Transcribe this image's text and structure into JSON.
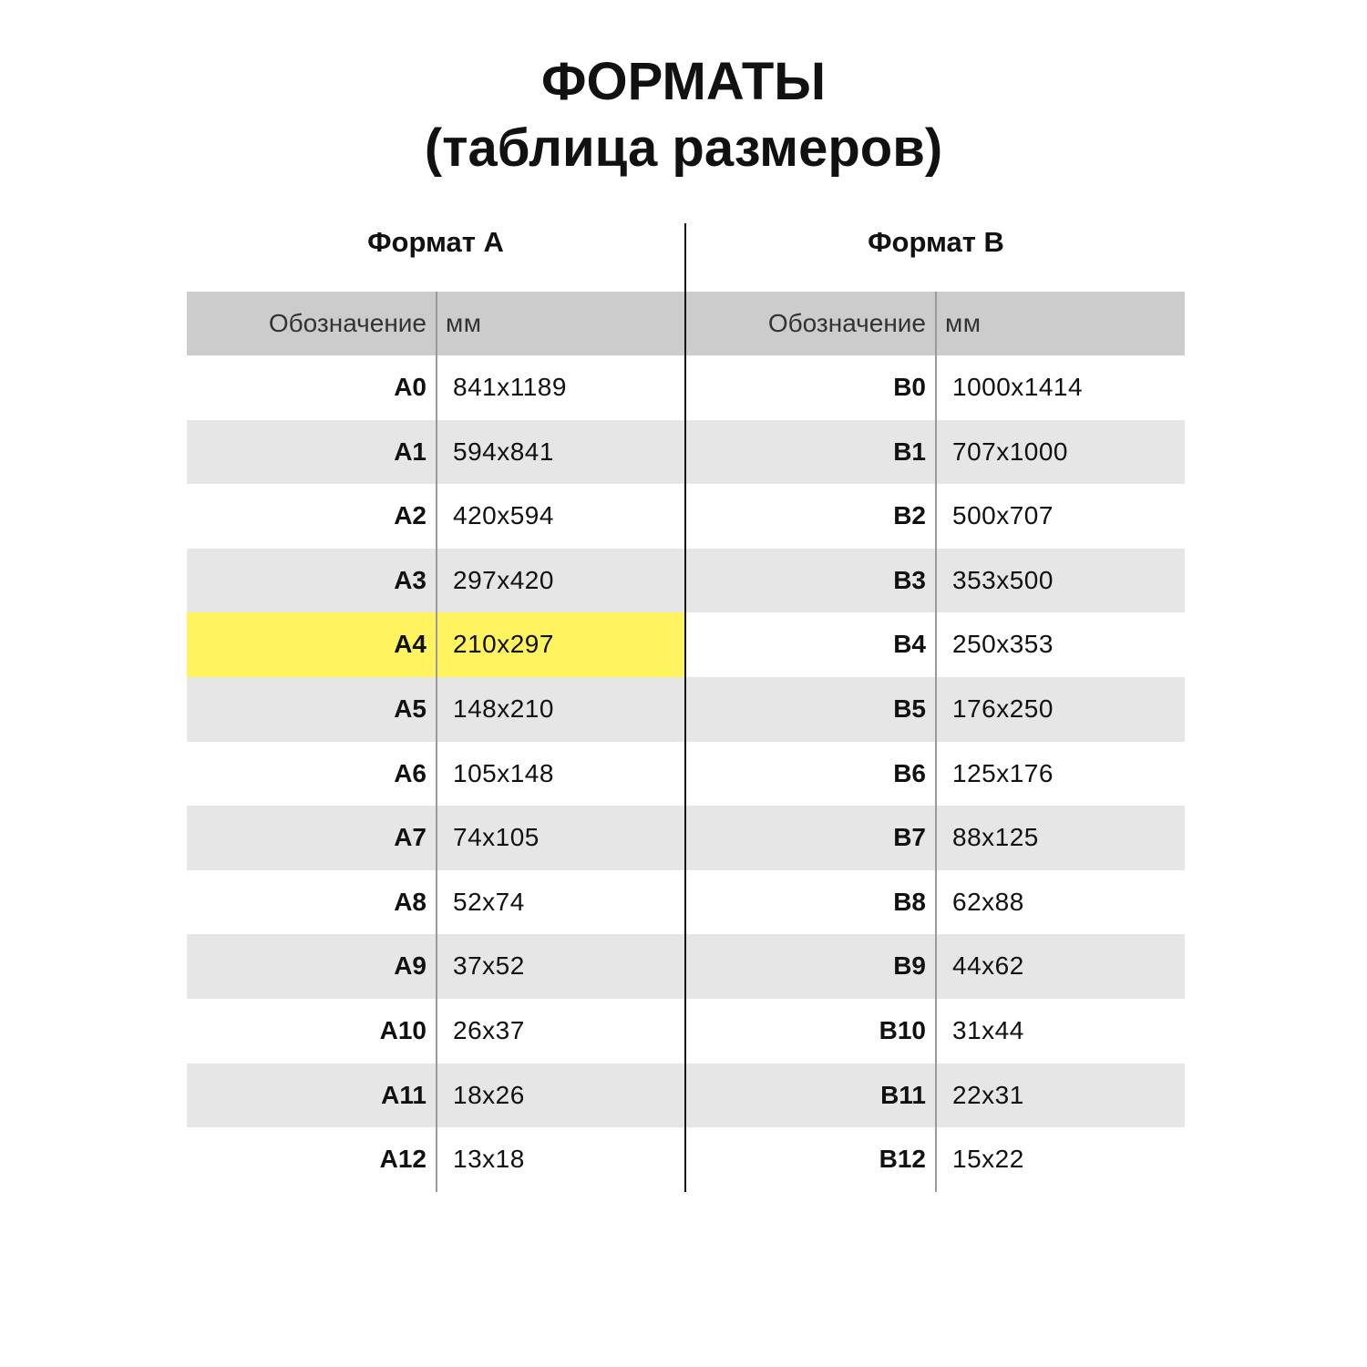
{
  "title": {
    "line1": "ФОРМАТЫ",
    "line2": "(таблица размеров)"
  },
  "colors": {
    "header_bg": "#cccccc",
    "stripe_bg": "#e6e6e7",
    "highlight": "#fff35f"
  },
  "tables": [
    {
      "heading": "Формат А",
      "col_code": "Обозначение",
      "col_mm": "мм",
      "highlight_row": "A4",
      "rows": [
        {
          "code": "A0",
          "mm": "841x1189"
        },
        {
          "code": "A1",
          "mm": "594x841"
        },
        {
          "code": "A2",
          "mm": "420x594"
        },
        {
          "code": "A3",
          "mm": "297x420"
        },
        {
          "code": "A4",
          "mm": "210x297"
        },
        {
          "code": "A5",
          "mm": "148x210"
        },
        {
          "code": "A6",
          "mm": "105x148"
        },
        {
          "code": "A7",
          "mm": "74x105"
        },
        {
          "code": "A8",
          "mm": "52x74"
        },
        {
          "code": "A9",
          "mm": "37x52"
        },
        {
          "code": "A10",
          "mm": "26x37"
        },
        {
          "code": "A11",
          "mm": "18x26"
        },
        {
          "code": "A12",
          "mm": "13x18"
        }
      ]
    },
    {
      "heading": "Формат В",
      "col_code": "Обозначение",
      "col_mm": "мм",
      "highlight_row": "",
      "rows": [
        {
          "code": "B0",
          "mm": "1000x1414"
        },
        {
          "code": "B1",
          "mm": "707x1000"
        },
        {
          "code": "B2",
          "mm": "500x707"
        },
        {
          "code": "B3",
          "mm": "353x500"
        },
        {
          "code": "B4",
          "mm": "250x353"
        },
        {
          "code": "B5",
          "mm": "176x250"
        },
        {
          "code": "B6",
          "mm": "125x176"
        },
        {
          "code": "B7",
          "mm": "88x125"
        },
        {
          "code": "B8",
          "mm": "62x88"
        },
        {
          "code": "B9",
          "mm": "44x62"
        },
        {
          "code": "B10",
          "mm": "31x44"
        },
        {
          "code": "B11",
          "mm": "22x31"
        },
        {
          "code": "B12",
          "mm": "15x22"
        }
      ]
    }
  ]
}
